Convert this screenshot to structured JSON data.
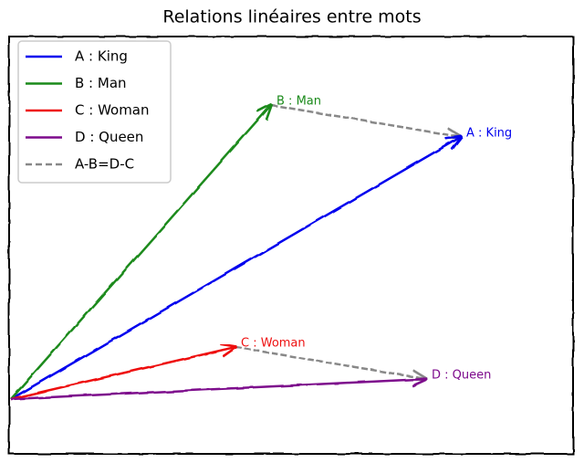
{
  "chart_data": {
    "type": "vector",
    "title": "Relations linéaires entre mots",
    "xlim": [
      -0.02,
      6.16
    ],
    "ylim": [
      -0.6,
      3.97
    ],
    "legend": "upper left",
    "vectors": [
      {
        "name": "A : King",
        "color": "#0000ee",
        "x": [
          0,
          4.93
        ],
        "y": [
          0,
          2.87
        ]
      },
      {
        "name": "B : Man",
        "color": "#1a8a1a",
        "x": [
          0,
          2.85
        ],
        "y": [
          0,
          3.22
        ]
      },
      {
        "name": "C : Woman",
        "color": "#ee1111",
        "x": [
          0,
          2.46
        ],
        "y": [
          0,
          0.57
        ]
      },
      {
        "name": "D : Queen",
        "color": "#7d0a8c",
        "x": [
          0,
          4.55
        ],
        "y": [
          0,
          0.22
        ]
      }
    ],
    "difference": {
      "name": "A-B=D-C",
      "color": "#888888",
      "segments": [
        {
          "x": [
            2.85,
            4.93
          ],
          "y": [
            3.22,
            2.87
          ]
        },
        {
          "x": [
            2.46,
            4.55
          ],
          "y": [
            0.57,
            0.22
          ]
        }
      ]
    }
  }
}
